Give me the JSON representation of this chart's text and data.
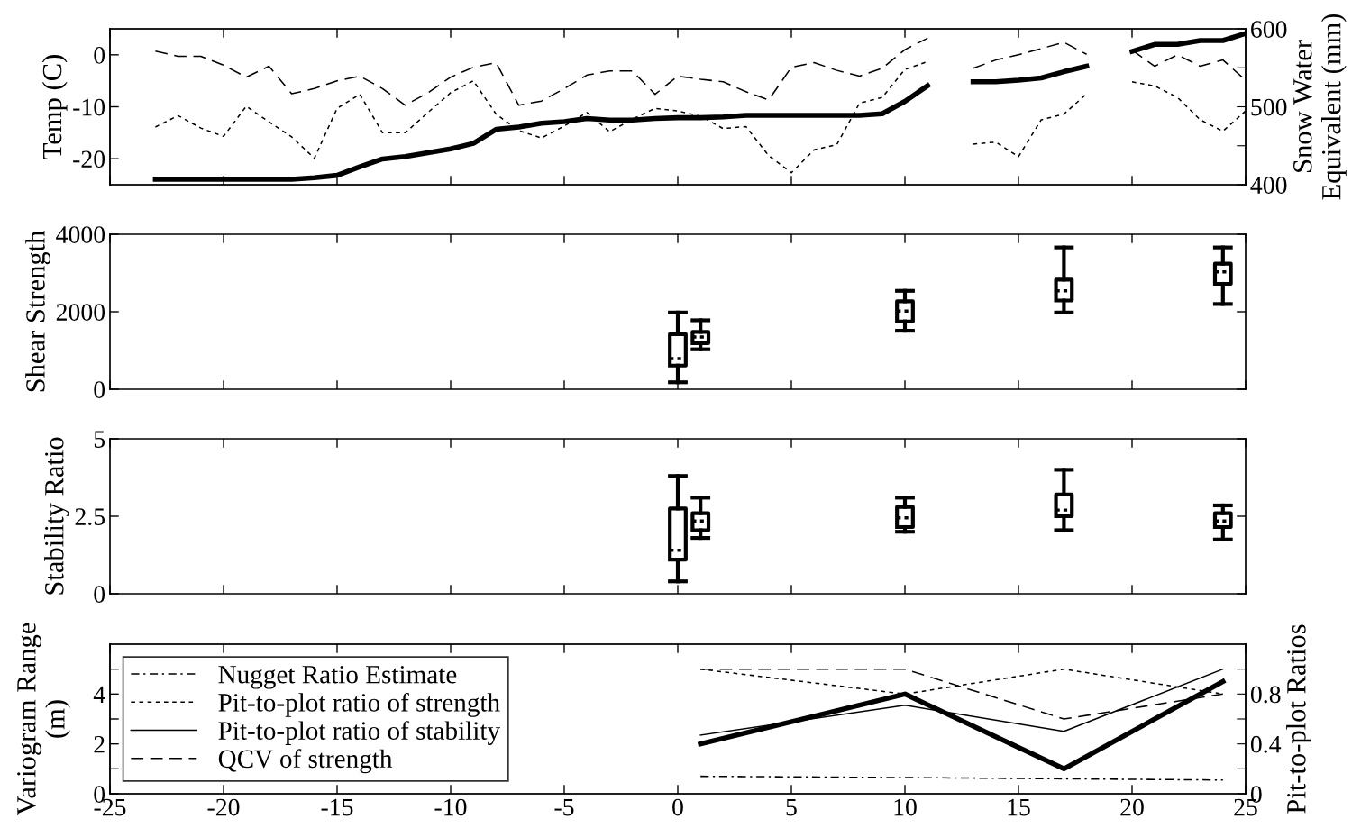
{
  "chart_data": [
    {
      "type": "line",
      "ylabel": "Temp (C)",
      "y2label": "Snow Water Equivalent (mm)",
      "xlim": [
        -25,
        25
      ],
      "xticks": [
        -25,
        -20,
        -15,
        -10,
        -5,
        0,
        5,
        10,
        15,
        20,
        25
      ],
      "ylim": [
        -25,
        5
      ],
      "yticks": [
        -20,
        -10,
        0
      ],
      "y2lim": [
        400,
        600
      ],
      "y2ticks": [
        400,
        {
          "value": 450,
          "label": null
        },
        500,
        {
          "value": 550,
          "label": null
        },
        600
      ],
      "tick_labels": "y",
      "grid": false,
      "legend": false,
      "x": [
        -23,
        -22,
        -21,
        -20,
        -19,
        -18,
        -17,
        -16,
        -15,
        -14,
        -13,
        -12,
        -11,
        -10,
        -9,
        -8,
        -7,
        -6,
        -5,
        -4,
        -3,
        -2,
        -1,
        0,
        1,
        2,
        3,
        4,
        5,
        6,
        7,
        8,
        9,
        10,
        11,
        12,
        13,
        14,
        15,
        16,
        17,
        18,
        19,
        20,
        21,
        22,
        23,
        24,
        25
      ],
      "series": [
        {
          "color": "#000000",
          "line_style": "dashed",
          "values": [
            0.7,
            -0.3,
            -0.3,
            -2,
            -4.3,
            -2.2,
            -7.5,
            -6.5,
            -5,
            -4.1,
            -6.5,
            -9.7,
            -7.3,
            -4.3,
            -2.4,
            -1.5,
            -9.7,
            -8.9,
            -6.5,
            -3.9,
            -3.1,
            -3.1,
            -7.6,
            -4.1,
            -4.7,
            -5.2,
            -7.1,
            -8.7,
            -2.4,
            -1.5,
            -3.0,
            -4.1,
            -2.6,
            1.0,
            3.2,
            null,
            -2.6,
            -1.0,
            0,
            1.2,
            2.4,
            0.1,
            null,
            0.9,
            -2.2,
            0,
            -2.2,
            -1.0,
            -4.9
          ]
        },
        {
          "color": "#000000",
          "line_style": "dotted",
          "values": [
            -13.9,
            -11.7,
            -14.1,
            -15.7,
            -9.9,
            -12.9,
            -15.8,
            -19.9,
            -10.3,
            -7.6,
            -15,
            -15,
            -11.1,
            -7.3,
            -5,
            -11.4,
            -14.6,
            -16,
            -13.7,
            -11.1,
            -14.8,
            -12.4,
            -10.3,
            -10.8,
            -11.8,
            -14.2,
            -13.8,
            -19.4,
            -22.7,
            -18.3,
            -17.3,
            -9.3,
            -8.2,
            -2.8,
            -1.3,
            null,
            -17.2,
            -16.8,
            -19.6,
            -12.5,
            -11.4,
            -7.5,
            null,
            -5.2,
            -6.0,
            -8.2,
            -12.5,
            -14.7,
            -10.8
          ]
        },
        {
          "color": "#000000",
          "line_style": "solid",
          "axis": "y2",
          "values": [
            407,
            407,
            407,
            407,
            407,
            407,
            407,
            409,
            412,
            423,
            433,
            436,
            441,
            446,
            453,
            471,
            474,
            479,
            481,
            485,
            483,
            483,
            485,
            486,
            486,
            487,
            489,
            489,
            489,
            489,
            489,
            489,
            491,
            507,
            527,
            null,
            532,
            532,
            534,
            537,
            545,
            552,
            null,
            571,
            580,
            580,
            585,
            585,
            594
          ]
        }
      ]
    },
    {
      "type": "box",
      "ylabel": "Shear Strength",
      "xlim": [
        -25,
        25
      ],
      "xticks": [
        -25,
        -20,
        -15,
        -10,
        -5,
        0,
        5,
        10,
        15,
        20,
        25
      ],
      "ylim": [
        0,
        4000
      ],
      "yticks": [
        0,
        2000,
        4000
      ],
      "tick_labels": "y",
      "grid": false,
      "x": [
        0,
        1,
        10,
        17,
        24
      ],
      "boxes": [
        {
          "low": 180,
          "q1": 610,
          "median": 790,
          "q3": 1420,
          "high": 1980
        },
        {
          "low": 1030,
          "q1": 1190,
          "median": 1350,
          "q3": 1480,
          "high": 1780
        },
        {
          "low": 1510,
          "q1": 1750,
          "median": 2020,
          "q3": 2270,
          "high": 2540
        },
        {
          "low": 1980,
          "q1": 2290,
          "median": 2540,
          "q3": 2830,
          "high": 3660
        },
        {
          "low": 2200,
          "q1": 2720,
          "median": 3030,
          "q3": 3240,
          "high": 3660
        }
      ]
    },
    {
      "type": "box",
      "ylabel": "Stability Ratio",
      "xlim": [
        -25,
        25
      ],
      "xticks": [
        -25,
        -20,
        -15,
        -10,
        -5,
        0,
        5,
        10,
        15,
        20,
        25
      ],
      "ylim": [
        0,
        5
      ],
      "yticks": [
        0,
        2.5,
        5
      ],
      "tick_labels": "y",
      "grid": false,
      "x": [
        0,
        1,
        10,
        17,
        24
      ],
      "boxes": [
        {
          "low": 0.4,
          "q1": 1.1,
          "median": 1.4,
          "q3": 2.75,
          "high": 3.8
        },
        {
          "low": 1.8,
          "q1": 2.05,
          "median": 2.35,
          "q3": 2.6,
          "high": 3.1
        },
        {
          "low": 2.0,
          "q1": 2.15,
          "median": 2.45,
          "q3": 2.8,
          "high": 3.1
        },
        {
          "low": 2.05,
          "q1": 2.5,
          "median": 2.7,
          "q3": 3.2,
          "high": 4.0
        },
        {
          "low": 1.75,
          "q1": 2.15,
          "median": 2.35,
          "q3": 2.6,
          "high": 2.85
        }
      ]
    },
    {
      "type": "line",
      "ylabel": "Variogram Range (m)",
      "y2label": "Pit-to-plot Ratios",
      "xlim": [
        -25,
        25
      ],
      "xticks": [
        -25,
        -20,
        -15,
        -10,
        -5,
        0,
        5,
        10,
        15,
        20,
        25
      ],
      "ylim": [
        0,
        6
      ],
      "yticks": [
        0,
        {
          "value": 1,
          "label": null
        },
        2,
        {
          "value": 3,
          "label": null
        },
        4,
        {
          "value": 5,
          "label": null
        }
      ],
      "y2lim": [
        0,
        1.2
      ],
      "y2ticks": [
        0,
        {
          "value": 0.2,
          "label": null
        },
        0.4,
        {
          "value": 0.6,
          "label": null
        },
        0.8,
        {
          "value": 1.0,
          "label": null
        }
      ],
      "grid": false,
      "legend": "left",
      "x": [
        1,
        10,
        17,
        24
      ],
      "series": [
        {
          "name": "Nugget Ratio Estimate",
          "color": "#000000",
          "line_style": "dashdot",
          "axis": "y2",
          "values": [
            0.14,
            0.13,
            0.12,
            0.11
          ]
        },
        {
          "name": "Pit-to-plot ratio of strength",
          "color": "#000000",
          "line_style": "dotted",
          "axis": "y2",
          "values": [
            1.0,
            0.8,
            1.0,
            0.8
          ]
        },
        {
          "name": "Pit-to-plot ratio of stability",
          "color": "#000000",
          "line_style": "solid",
          "axis": "y2",
          "values": [
            0.47,
            0.71,
            0.5,
            1.0
          ]
        },
        {
          "name": "QCV of strength",
          "color": "#000000",
          "line_style": "dashed",
          "axis": "y2",
          "values": [
            1.0,
            1.0,
            0.6,
            0.8
          ]
        },
        {
          "color": "#000000",
          "line_style": "solid",
          "values": [
            2,
            4,
            1,
            4.5
          ]
        }
      ]
    }
  ]
}
